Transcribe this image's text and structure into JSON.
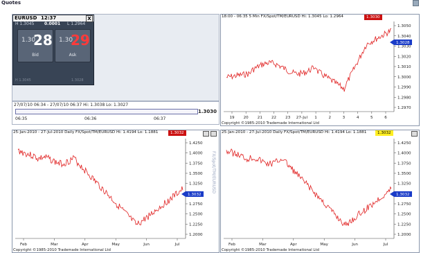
{
  "app": {
    "title": "Quotes"
  },
  "quote": {
    "pair": "EURUSD",
    "time": "12:37",
    "close": "X",
    "stat_left": "H 1.3045",
    "stat_mid": "0.0001",
    "stat_right": "L 1.2964",
    "bid_prefix": "1.30",
    "bid_big": "28",
    "bid_label": "Bid",
    "ask_prefix": "1.30",
    "ask_big": "29",
    "ask_label": "Ask",
    "foot_left": "H 1.3045",
    "foot_right": "1.3028"
  },
  "mini": {
    "title": "27/07/10 06:34 - 27/07/10 06:37  Hi: 1.3038  Lo: 1.3027",
    "price": "1.3030",
    "ticks": [
      "06:35",
      "06:36",
      "06:37"
    ]
  },
  "charts": [
    {
      "title": "18:00 - 06:35  5 Min  FX/Spot/TM/EURUSD  Hi: 1.3045  Lo: 1.2964",
      "badge": "1.3030",
      "badge_color": "#cc1111",
      "badge_text_color": "#ffffff",
      "current": "1.3028",
      "copyright": "Copyright ©1985-2010 Trademade International Ltd",
      "yticks": [
        "1.3050",
        "1.3040",
        "1.3030",
        "1.3020",
        "1.3010",
        "1.3000",
        "1.2990",
        "1.2980",
        "1.2970"
      ],
      "xticks": [
        "19",
        "20",
        "21",
        "22",
        "23",
        "27-Jul",
        "1",
        "2",
        "3",
        "4",
        "5",
        "6"
      ]
    },
    {
      "title": "25-Jan-2010 - 27-Jul-2010  Daily  FX/Spot/TM/EURUSD  Hi: 1.4194  Lo: 1.1881",
      "badge": "1.3032",
      "badge_color": "#cc1111",
      "badge_text_color": "#ffffff",
      "current": "1.3032",
      "copyright": "Copyright ©1985-2010 Trademade International Ltd",
      "yticks": [
        "1.4250",
        "1.4000",
        "1.3750",
        "1.3500",
        "1.3250",
        "1.3000",
        "1.2750",
        "1.2500",
        "1.2250",
        "1.2000"
      ],
      "xticks": [
        "Feb",
        "Mar",
        "Apr",
        "May",
        "Jun",
        "Jul"
      ]
    },
    {
      "title": "25-Jan-2010 - 27-Jul-2010  Daily  FX/Spot/TM/EURUSD  Hi: 1.4194  Lo: 1.1881",
      "badge": "1.3032",
      "badge_color": "#ffee22",
      "badge_text_color": "#000000",
      "current": "1.3032",
      "copyright": "Copyright ©1985-2010 Trademade International Ltd",
      "yticks": [
        "1.4250",
        "1.4000",
        "1.3750",
        "1.3500",
        "1.3250",
        "1.3000",
        "1.2750",
        "1.2500",
        "1.2250",
        "1.2000"
      ],
      "xticks": [
        "Feb",
        "Mar",
        "Apr",
        "May",
        "Jun",
        "Jul"
      ]
    }
  ],
  "side_label": "FX/Spot/TM/EURUSD",
  "colors": {
    "line": "#e02020",
    "marker": "#1a3cc8",
    "panel_border": "#8895aa"
  }
}
